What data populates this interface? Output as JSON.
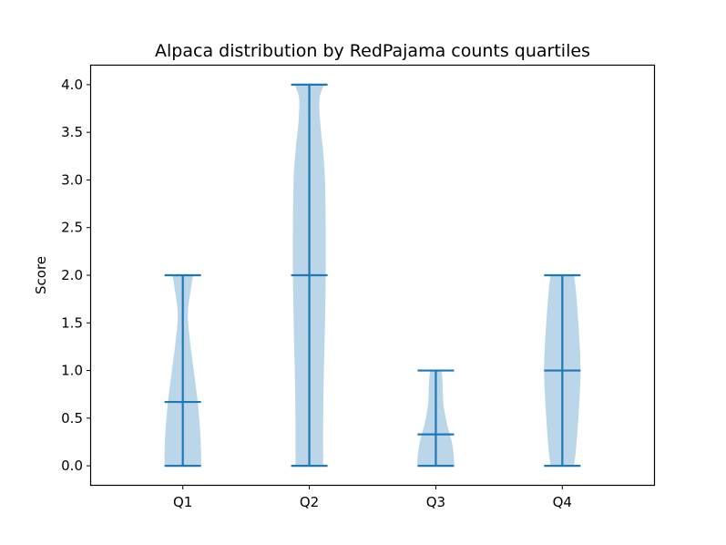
{
  "chart_data": {
    "type": "violin",
    "title": "Alpaca distribution by RedPajama counts quartiles",
    "xlabel": "",
    "ylabel": "Score",
    "categories": [
      "Q1",
      "Q2",
      "Q3",
      "Q4"
    ],
    "ylim": [
      -0.2,
      4.2
    ],
    "yticks": [
      "0.0",
      "0.5",
      "1.0",
      "1.5",
      "2.0",
      "2.5",
      "3.0",
      "3.5",
      "4.0"
    ],
    "grid": false,
    "colors": {
      "body": "#1f77b4",
      "body_opacity": 0.3,
      "lines": "#1f77b4"
    },
    "violins": [
      {
        "name": "Q1",
        "min": 0,
        "max": 2,
        "mean": 0.67,
        "density": [
          {
            "y": 0.0,
            "w": 0.5
          },
          {
            "y": 0.15,
            "w": 0.5
          },
          {
            "y": 0.4,
            "w": 0.47
          },
          {
            "y": 0.7,
            "w": 0.4
          },
          {
            "y": 1.0,
            "w": 0.3
          },
          {
            "y": 1.3,
            "w": 0.2
          },
          {
            "y": 1.6,
            "w": 0.14
          },
          {
            "y": 1.9,
            "w": 0.24
          },
          {
            "y": 2.0,
            "w": 0.28
          }
        ]
      },
      {
        "name": "Q2",
        "min": 0,
        "max": 4,
        "mean": 2.0,
        "density": [
          {
            "y": 0.0,
            "w": 0.38
          },
          {
            "y": 0.5,
            "w": 0.38
          },
          {
            "y": 1.0,
            "w": 0.4
          },
          {
            "y": 1.5,
            "w": 0.43
          },
          {
            "y": 2.0,
            "w": 0.45
          },
          {
            "y": 2.5,
            "w": 0.45
          },
          {
            "y": 3.0,
            "w": 0.43
          },
          {
            "y": 3.3,
            "w": 0.38
          },
          {
            "y": 3.6,
            "w": 0.3
          },
          {
            "y": 3.85,
            "w": 0.28
          },
          {
            "y": 4.0,
            "w": 0.4
          }
        ]
      },
      {
        "name": "Q3",
        "min": 0,
        "max": 1,
        "mean": 0.33,
        "density": [
          {
            "y": 0.0,
            "w": 0.5
          },
          {
            "y": 0.08,
            "w": 0.5
          },
          {
            "y": 0.25,
            "w": 0.44
          },
          {
            "y": 0.45,
            "w": 0.3
          },
          {
            "y": 0.65,
            "w": 0.21
          },
          {
            "y": 0.85,
            "w": 0.19
          },
          {
            "y": 1.0,
            "w": 0.16
          }
        ]
      },
      {
        "name": "Q4",
        "min": 0,
        "max": 2,
        "mean": 1.0,
        "density": [
          {
            "y": 0.0,
            "w": 0.32
          },
          {
            "y": 0.15,
            "w": 0.37
          },
          {
            "y": 0.5,
            "w": 0.44
          },
          {
            "y": 1.0,
            "w": 0.5
          },
          {
            "y": 1.5,
            "w": 0.44
          },
          {
            "y": 1.85,
            "w": 0.37
          },
          {
            "y": 2.0,
            "w": 0.32
          }
        ]
      }
    ]
  }
}
